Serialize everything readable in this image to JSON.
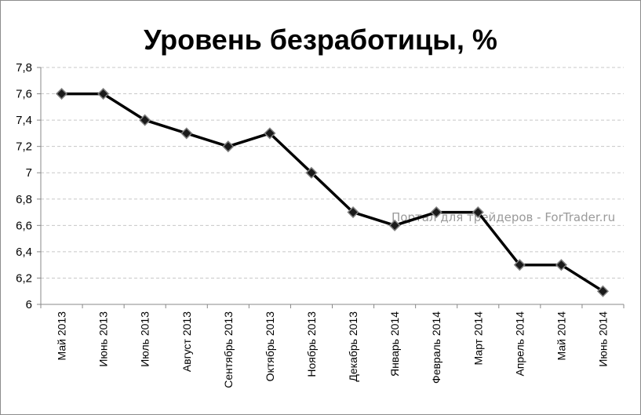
{
  "chart_data": {
    "type": "line",
    "title": "Уровень безработицы, %",
    "categories": [
      "Май 2013",
      "Июнь 2013",
      "Июль 2013",
      "Август 2013",
      "Сентябрь 2013",
      "Октябрь 2013",
      "Ноябрь 2013",
      "Декабрь 2013",
      "Январь 2014",
      "Февраль 2014",
      "Март 2014",
      "Апрель 2014",
      "Май 2014",
      "Июнь 2014"
    ],
    "series": [
      {
        "values": [
          7.6,
          7.6,
          7.4,
          7.3,
          7.2,
          7.3,
          7.0,
          6.7,
          6.6,
          6.7,
          6.7,
          6.3,
          6.3,
          6.1
        ]
      }
    ],
    "ylim": [
      6,
      7.8
    ],
    "yticks": [
      "6",
      "6,2",
      "6,4",
      "6,6",
      "6,8",
      "7",
      "7,2",
      "7,4",
      "7,6",
      "7,8"
    ],
    "grid": true,
    "marker": "diamond",
    "line_color": "#000000",
    "marker_fill": "#1a1a1a",
    "marker_stroke": "#7f7f7f",
    "grid_color": "#c8c8c8",
    "watermark": "Портал для трейдеров - ForTrader.ru"
  }
}
